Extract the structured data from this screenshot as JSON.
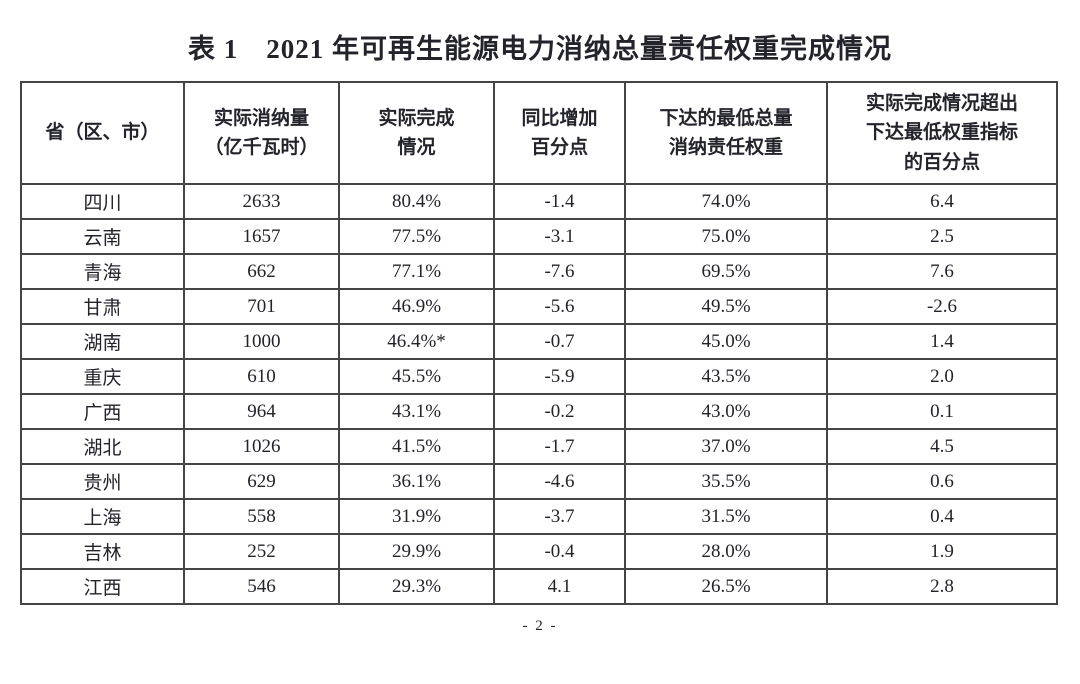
{
  "title": "表 1　2021 年可再生能源电力消纳总量责任权重完成情况",
  "table": {
    "headers": [
      {
        "lines": [
          "省（区、市）"
        ]
      },
      {
        "lines": [
          "实际消纳量",
          "（亿千瓦时）"
        ]
      },
      {
        "lines": [
          "实际完成",
          "情况"
        ]
      },
      {
        "lines": [
          "同比增加",
          "百分点"
        ]
      },
      {
        "lines": [
          "下达的最低总量",
          "消纳责任权重"
        ]
      },
      {
        "lines": [
          "实际完成情况超出",
          "下达最低权重指标",
          "的百分点"
        ]
      }
    ],
    "rows": [
      [
        "四川",
        "2633",
        "80.4%",
        "-1.4",
        "74.0%",
        "6.4"
      ],
      [
        "云南",
        "1657",
        "77.5%",
        "-3.1",
        "75.0%",
        "2.5"
      ],
      [
        "青海",
        "662",
        "77.1%",
        "-7.6",
        "69.5%",
        "7.6"
      ],
      [
        "甘肃",
        "701",
        "46.9%",
        "-5.6",
        "49.5%",
        "-2.6"
      ],
      [
        "湖南",
        "1000",
        "46.4%*",
        "-0.7",
        "45.0%",
        "1.4"
      ],
      [
        "重庆",
        "610",
        "45.5%",
        "-5.9",
        "43.5%",
        "2.0"
      ],
      [
        "广西",
        "964",
        "43.1%",
        "-0.2",
        "43.0%",
        "0.1"
      ],
      [
        "湖北",
        "1026",
        "41.5%",
        "-1.7",
        "37.0%",
        "4.5"
      ],
      [
        "贵州",
        "629",
        "36.1%",
        "-4.6",
        "35.5%",
        "0.6"
      ],
      [
        "上海",
        "558",
        "31.9%",
        "-3.7",
        "31.5%",
        "0.4"
      ],
      [
        "吉林",
        "252",
        "29.9%",
        "-0.4",
        "28.0%",
        "1.9"
      ],
      [
        "江西",
        "546",
        "29.3%",
        "4.1",
        "26.5%",
        "2.8"
      ]
    ]
  },
  "footer": {
    "page_label": "- 2 -"
  },
  "colors": {
    "text": "#23232b",
    "border": "#454545",
    "background": "#ffffff"
  }
}
